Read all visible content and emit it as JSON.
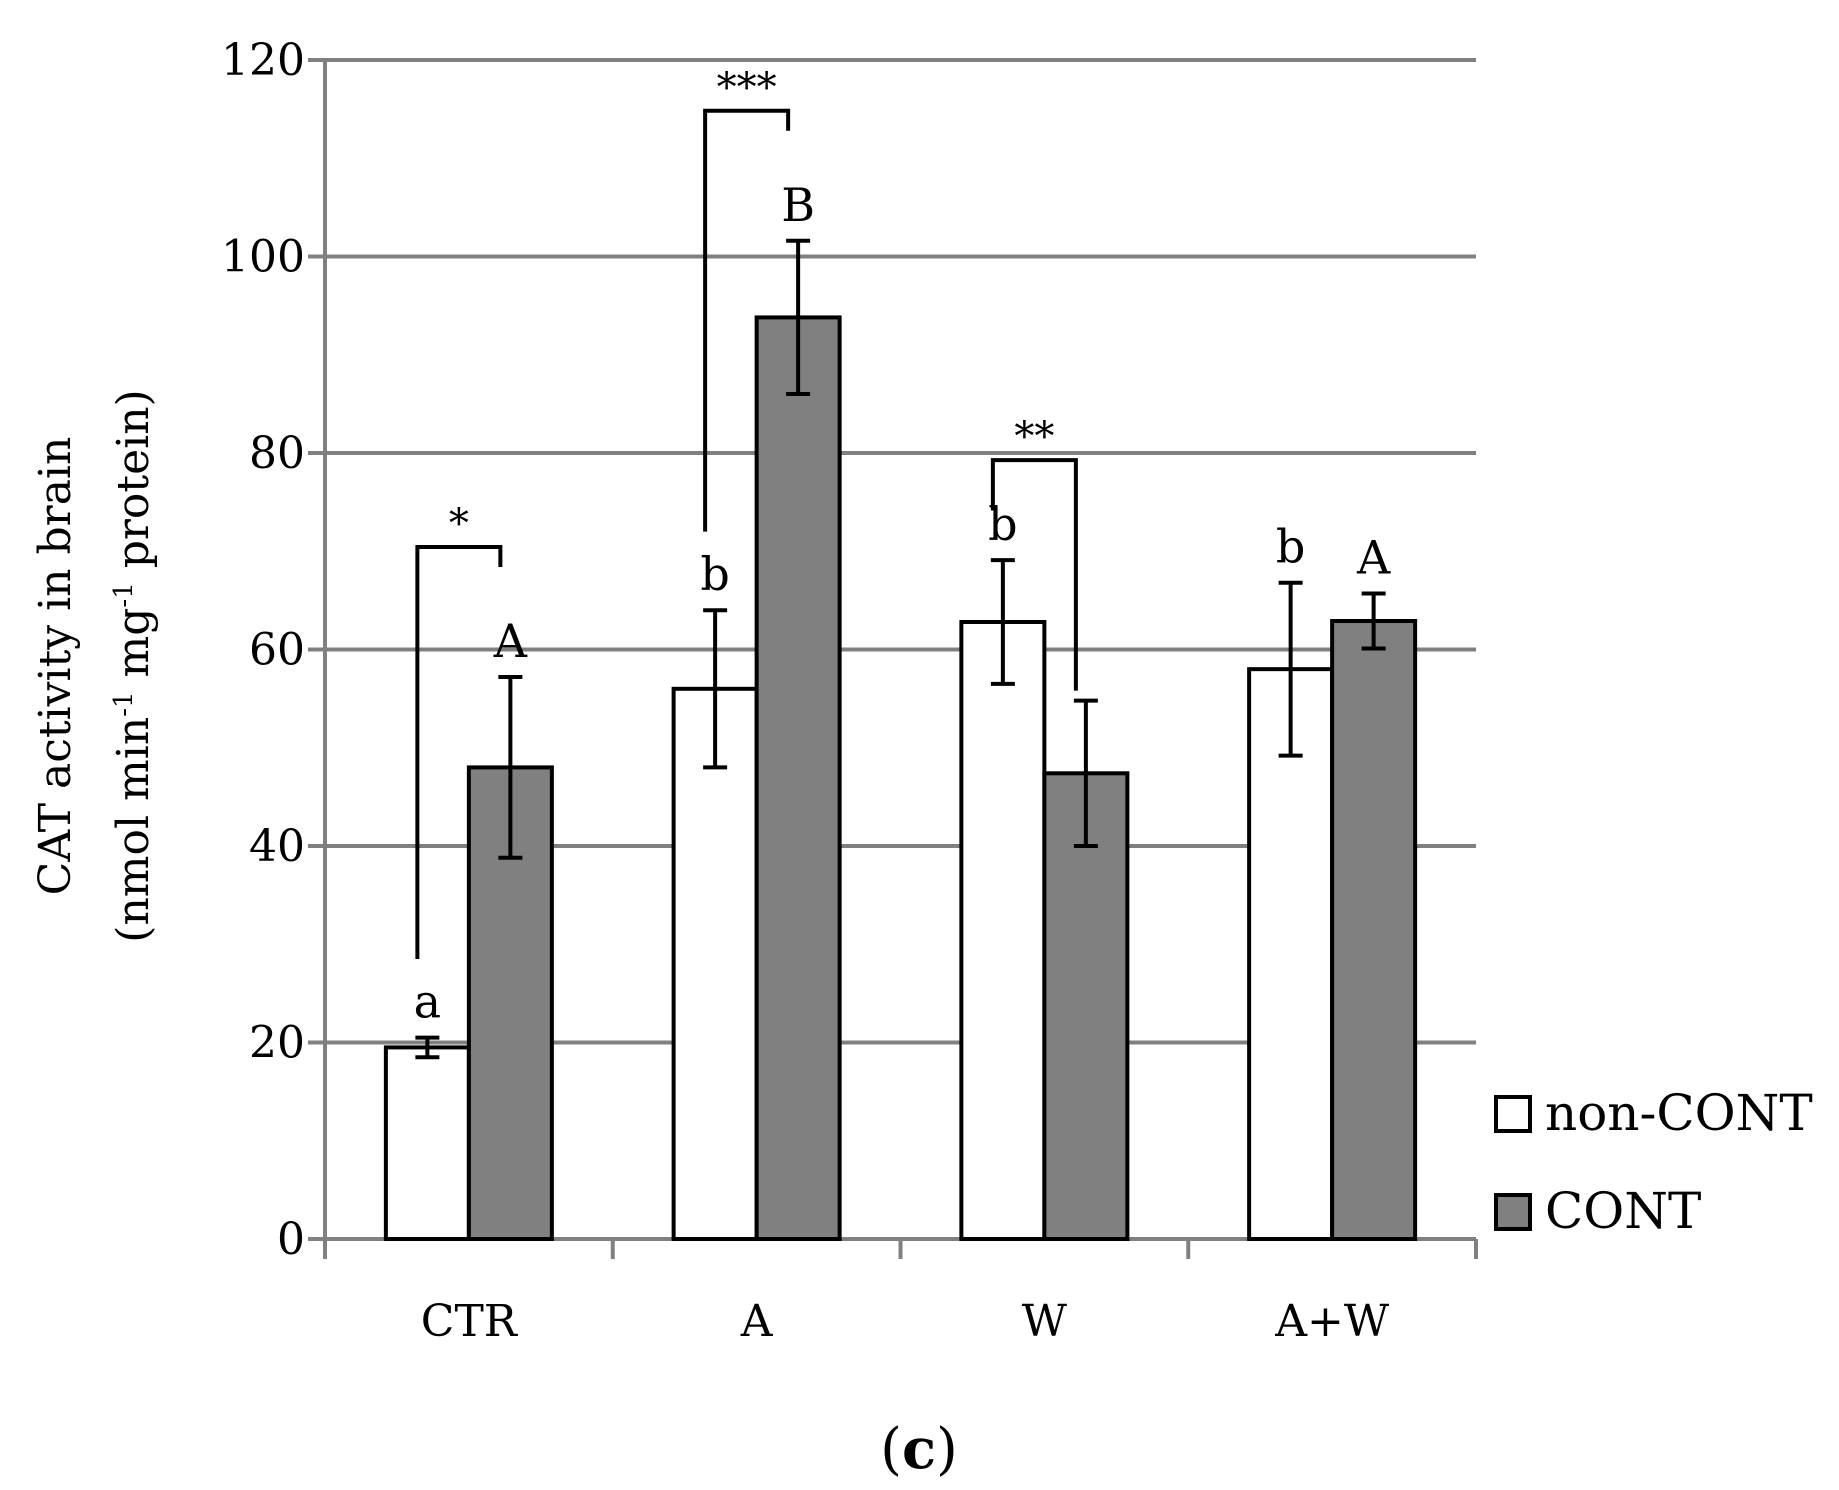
{
  "chart_data": {
    "type": "bar",
    "categories": [
      "CTR",
      "A",
      "W",
      "A+W"
    ],
    "series": [
      {
        "name": "non-CONT",
        "color": "#ffffff",
        "values": [
          19.5,
          56,
          62.8,
          58
        ],
        "errors": [
          1.0,
          8.0,
          6.3,
          8.8
        ],
        "letters": [
          "a",
          "b",
          "b",
          "b"
        ]
      },
      {
        "name": "CONT",
        "color": "#808080",
        "values": [
          48,
          93.8,
          47.4,
          62.9
        ],
        "errors": [
          9.2,
          7.8,
          7.4,
          2.8
        ],
        "letters": [
          "A",
          "B",
          "",
          "A"
        ]
      }
    ],
    "significance": [
      {
        "category": "CTR",
        "label": "*"
      },
      {
        "category": "A",
        "label": "***"
      },
      {
        "category": "W",
        "label": "**"
      }
    ],
    "ylim": [
      0,
      120
    ],
    "yticks": [
      0,
      20,
      40,
      60,
      80,
      100,
      120
    ],
    "ylabel": {
      "line1": "CAT activity in brain",
      "line2_a": "(nmol min",
      "sup_1": "-1",
      "line2_b": " mg",
      "sup_2": "-1",
      "line2_c": " protein)"
    },
    "xlabel": "",
    "grid": true,
    "legend": "right",
    "gridline_color": "#808080"
  },
  "panel_label": {
    "open": "(",
    "letter": "c",
    "close": ")"
  }
}
